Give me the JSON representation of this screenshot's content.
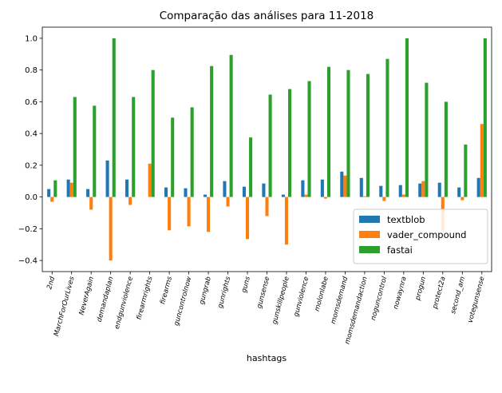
{
  "chart_data": {
    "type": "bar",
    "title": "Comparação das análises para 11-2018",
    "xlabel": "hashtags",
    "ylabel": "",
    "ylim": [
      -0.47,
      1.07
    ],
    "yticks": [
      -0.4,
      -0.2,
      0.0,
      0.2,
      0.4,
      0.6,
      0.8,
      1.0
    ],
    "ytick_labels": [
      "−0.4",
      "−0.2",
      "0.0",
      "0.2",
      "0.4",
      "0.6",
      "0.8",
      "1.0"
    ],
    "grid": false,
    "legend_position": "lower-right",
    "categories": [
      "2nd",
      "MarchForOurLives",
      "NeverAgain",
      "demandaplan",
      "endgunviolence",
      "firearmrights",
      "firearms",
      "guncontrolnow",
      "gungrab",
      "gunrights",
      "guns",
      "gunsense",
      "gunskillpeople",
      "gunviolence",
      "molonlabe",
      "momsdemand",
      "momsdemandaction",
      "noguncontrol",
      "nowaynra",
      "progun",
      "protect2a",
      "second_am",
      "votegunsense"
    ],
    "series": [
      {
        "name": "textblob",
        "color": "#1f77b4",
        "values": [
          0.05,
          0.11,
          0.05,
          0.23,
          0.11,
          0.0,
          0.06,
          0.055,
          0.015,
          0.1,
          0.065,
          0.085,
          0.015,
          0.105,
          0.11,
          0.16,
          0.12,
          0.07,
          0.075,
          0.085,
          0.09,
          0.06,
          0.12
        ]
      },
      {
        "name": "vader_compound",
        "color": "#ff7f0e",
        "values": [
          -0.03,
          0.09,
          -0.08,
          -0.4,
          -0.05,
          0.21,
          -0.21,
          -0.185,
          -0.22,
          -0.06,
          -0.265,
          -0.12,
          -0.3,
          0.015,
          -0.01,
          0.135,
          0.005,
          -0.025,
          0.015,
          0.1,
          -0.22,
          -0.02,
          0.46
        ]
      },
      {
        "name": "fastai",
        "color": "#2ca02c",
        "values": [
          0.105,
          0.63,
          0.575,
          1.0,
          0.63,
          0.8,
          0.5,
          0.565,
          0.825,
          0.895,
          0.375,
          0.645,
          0.68,
          0.73,
          0.82,
          0.8,
          0.775,
          0.87,
          1.0,
          0.72,
          0.6,
          0.33,
          1.0
        ]
      }
    ]
  }
}
